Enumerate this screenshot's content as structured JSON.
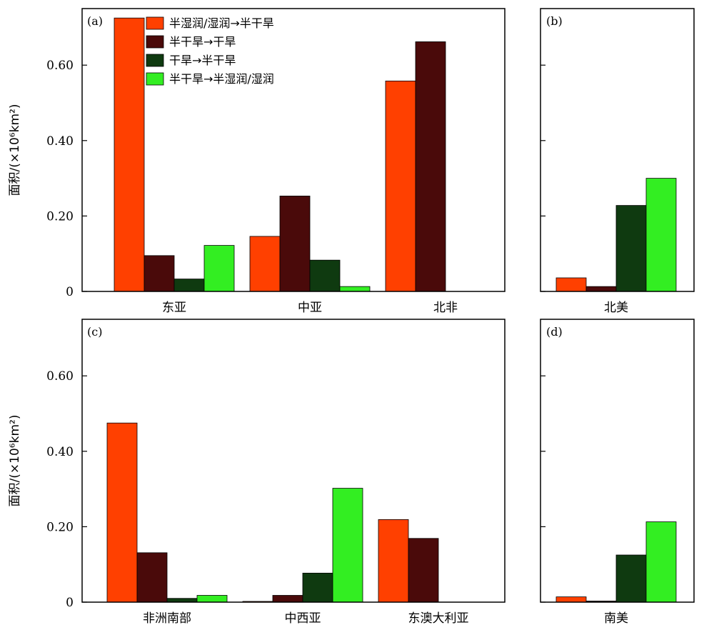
{
  "chart_data": {
    "type": "bar",
    "ylabel": "面积/(×10⁶km²)",
    "ylim": [
      0,
      0.75
    ],
    "yticks": [
      {
        "value": 0,
        "label": "0"
      },
      {
        "value": 0.2,
        "label": "0.20"
      },
      {
        "value": 0.4,
        "label": "0.40"
      },
      {
        "value": 0.6,
        "label": "0.60"
      }
    ],
    "series": [
      {
        "name": "半湿润/湿润→半干旱",
        "color": "#ff4000"
      },
      {
        "name": "半干旱→干旱",
        "color": "#4a0a0a"
      },
      {
        "name": "干旱→半干旱",
        "color": "#0f3a10"
      },
      {
        "name": "半干旱→半湿润/湿润",
        "color": "#33ee22"
      }
    ],
    "legend_position": "top-left",
    "panels": [
      {
        "tag": "(a)",
        "categories": [
          "东亚",
          "中亚",
          "北非"
        ],
        "values": [
          [
            0.725,
            0.095,
            0.033,
            0.122
          ],
          [
            0.146,
            0.253,
            0.083,
            0.013
          ],
          [
            0.558,
            0.662,
            0,
            0
          ]
        ]
      },
      {
        "tag": "(b)",
        "categories": [
          "北美"
        ],
        "values": [
          [
            0.036,
            0.013,
            0.228,
            0.3
          ]
        ]
      },
      {
        "tag": "(c)",
        "categories": [
          "非洲南部",
          "中西亚",
          "东澳大利亚"
        ],
        "values": [
          [
            0.475,
            0.131,
            0.01,
            0.018
          ],
          [
            0.002,
            0.018,
            0.077,
            0.302
          ],
          [
            0.219,
            0.169,
            0,
            0
          ]
        ]
      },
      {
        "tag": "(d)",
        "categories": [
          "南美"
        ],
        "values": [
          [
            0.014,
            0.003,
            0.125,
            0.213
          ]
        ]
      }
    ]
  }
}
